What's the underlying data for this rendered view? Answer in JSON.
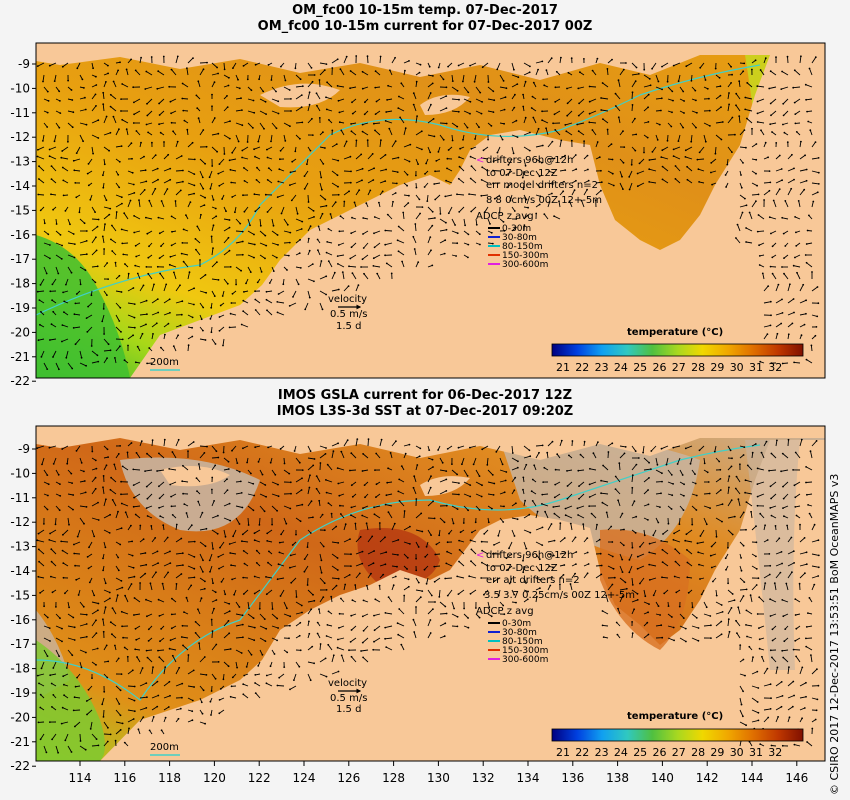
{
  "top_panel": {
    "title_line1": "OM_fc00 10-15m temp. 07-Dec-2017",
    "title_line2": "OM_fc00 10-15m current for 07-Dec-2017 00Z",
    "drifters": [
      "drifters 96h@12h",
      "to 07-Dec 12Z",
      "err model drifters n=2",
      "8 8 0cm/s 00Z 12+-5m"
    ],
    "adcp_title": "ADCP z avg",
    "adcp_items": [
      {
        "label": "0-30m",
        "color": "#000000"
      },
      {
        "label": "30-80m",
        "color": "#1020d0"
      },
      {
        "label": "80-150m",
        "color": "#00c0c0"
      },
      {
        "label": "150-300m",
        "color": "#e03000"
      },
      {
        "label": "300-600m",
        "color": "#e020e0"
      }
    ],
    "velocity": [
      "velocity",
      "0.5 m/s",
      "1.5 d"
    ],
    "isobath": "200m",
    "legend_title": "temperature (°C)",
    "legend_ticks": [
      "21",
      "22",
      "23",
      "24",
      "25",
      "26",
      "27",
      "28",
      "29",
      "30",
      "31",
      "32"
    ]
  },
  "bottom_panel": {
    "title_line1": "IMOS GSLA current for 06-Dec-2017 12Z",
    "title_line2": "IMOS L3S-3d SST at 07-Dec-2017 09:20Z",
    "drifters": [
      "drifters 96h@12h",
      "to 07-Dec 12Z",
      "err alt drifters n=2",
      "3.5 3.7 0.25cm/s 00Z 12+-5m"
    ],
    "adcp_title": "ADCP z avg",
    "adcp_items": [
      {
        "label": "0-30m",
        "color": "#000000"
      },
      {
        "label": "30-80m",
        "color": "#1020d0"
      },
      {
        "label": "80-150m",
        "color": "#00c0c0"
      },
      {
        "label": "150-300m",
        "color": "#e03000"
      },
      {
        "label": "300-600m",
        "color": "#e020e0"
      }
    ],
    "velocity": [
      "velocity",
      "0.5 m/s",
      "1.5 d"
    ],
    "isobath": "200m",
    "legend_title": "temperature (°C)",
    "legend_ticks": [
      "21",
      "22",
      "23",
      "24",
      "25",
      "26",
      "27",
      "28",
      "29",
      "30",
      "31",
      "32"
    ]
  },
  "lat_ticks": [
    "-9",
    "-10",
    "-11",
    "-12",
    "-13",
    "-14",
    "-15",
    "-16",
    "-17",
    "-18",
    "-19",
    "-20",
    "-21",
    "-22"
  ],
  "lon_ticks": [
    "114",
    "116",
    "118",
    "120",
    "122",
    "124",
    "126",
    "128",
    "130",
    "132",
    "134",
    "136",
    "138",
    "140",
    "142",
    "144",
    "146"
  ],
  "side_credit": "© CSIRO 2017  12-Dec-2017 13:53:51 BoM OceanMAPS v3",
  "colors": {
    "land": "#f8c898",
    "nodata": "#c8b4a0",
    "warm": "#e08818",
    "hot": "#c85010",
    "cool": "#60c030",
    "isobath": "#40d0c8",
    "marker": "#e020e0"
  },
  "colormap": [
    "#000080",
    "#0018b0",
    "#0048e0",
    "#0098f0",
    "#20c8f0",
    "#40d0a0",
    "#50c040",
    "#98d820",
    "#d8e000",
    "#f8c800",
    "#f0a000",
    "#e07000",
    "#c84000",
    "#a01000",
    "#801000"
  ]
}
